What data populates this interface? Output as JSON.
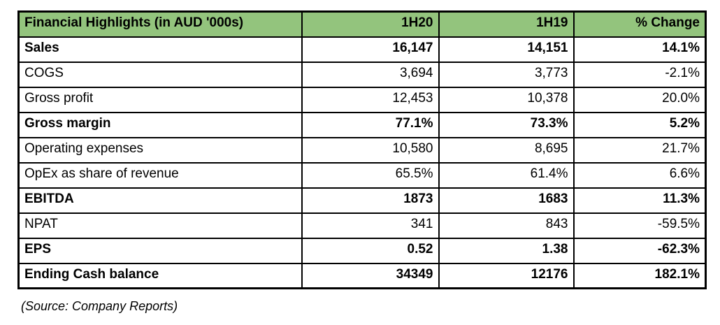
{
  "accent_color": "#93c47d",
  "border_color": "#000000",
  "table": {
    "header": {
      "title": "Financial Highlights (in AUD '000s)",
      "col_1h20": "1H20",
      "col_1h19": "1H19",
      "col_change": "% Change"
    },
    "rows": [
      {
        "label": "Sales",
        "h1_20": "16,147",
        "h1_19": "14,151",
        "change": "14.1%",
        "bold": true
      },
      {
        "label": "COGS",
        "h1_20": "3,694",
        "h1_19": "3,773",
        "change": "-2.1%",
        "bold": false
      },
      {
        "label": "Gross profit",
        "h1_20": "12,453",
        "h1_19": "10,378",
        "change": "20.0%",
        "bold": false
      },
      {
        "label": "Gross margin",
        "h1_20": "77.1%",
        "h1_19": "73.3%",
        "change": "5.2%",
        "bold": true
      },
      {
        "label": "Operating expenses",
        "h1_20": "10,580",
        "h1_19": "8,695",
        "change": "21.7%",
        "bold": false
      },
      {
        "label": "OpEx as share of revenue",
        "h1_20": "65.5%",
        "h1_19": "61.4%",
        "change": "6.6%",
        "bold": false
      },
      {
        "label": "EBITDA",
        "h1_20": "1873",
        "h1_19": "1683",
        "change": "11.3%",
        "bold": true
      },
      {
        "label": "NPAT",
        "h1_20": "341",
        "h1_19": "843",
        "change": "-59.5%",
        "bold": false
      },
      {
        "label": "EPS",
        "h1_20": "0.52",
        "h1_19": "1.38",
        "change": "-62.3%",
        "bold": true
      },
      {
        "label": "Ending Cash balance",
        "h1_20": "34349",
        "h1_19": "12176",
        "change": "182.1%",
        "bold": true
      }
    ],
    "source_note": "(Source: Company Reports)"
  },
  "chart_data": {
    "type": "table",
    "title": "Financial Highlights (in AUD '000s)",
    "columns": [
      "Financial Highlights (in AUD '000s)",
      "1H20",
      "1H19",
      "% Change"
    ],
    "rows": [
      [
        "Sales",
        "16,147",
        "14,151",
        "14.1%"
      ],
      [
        "COGS",
        "3,694",
        "3,773",
        "-2.1%"
      ],
      [
        "Gross profit",
        "12,453",
        "10,378",
        "20.0%"
      ],
      [
        "Gross margin",
        "77.1%",
        "73.3%",
        "5.2%"
      ],
      [
        "Operating expenses",
        "10,580",
        "8,695",
        "21.7%"
      ],
      [
        "OpEx as share of revenue",
        "65.5%",
        "61.4%",
        "6.6%"
      ],
      [
        "EBITDA",
        "1873",
        "1683",
        "11.3%"
      ],
      [
        "NPAT",
        "341",
        "843",
        "-59.5%"
      ],
      [
        "EPS",
        "0.52",
        "1.38",
        "-62.3%"
      ],
      [
        "Ending Cash balance",
        "34349",
        "12176",
        "182.1%"
      ]
    ],
    "source": "(Source: Company Reports)"
  }
}
